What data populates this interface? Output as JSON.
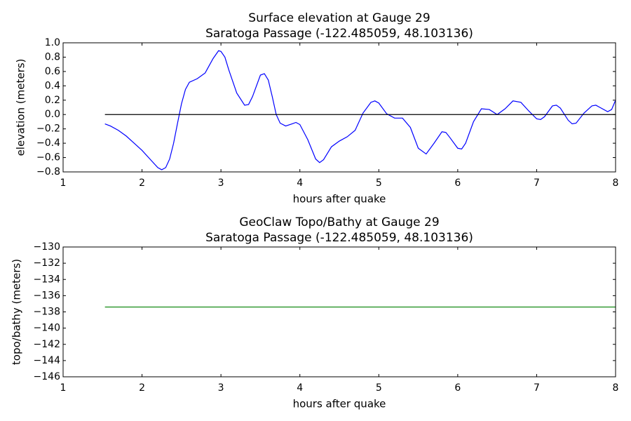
{
  "chart_data": [
    {
      "type": "line",
      "title": [
        "Surface elevation at Gauge 29",
        "Saratoga Passage  (-122.485059, 48.103136)"
      ],
      "xlabel": "hours after quake",
      "ylabel": "elevation (meters)",
      "xlim": [
        1,
        8
      ],
      "xticks": [
        1,
        2,
        3,
        4,
        5,
        6,
        7,
        8
      ],
      "ylim": [
        -0.8,
        1.0
      ],
      "yticks": [
        {
          "value": -0.8,
          "label": "−0.8"
        },
        {
          "value": -0.6,
          "label": "−0.6"
        },
        {
          "value": -0.4,
          "label": "−0.4"
        },
        {
          "value": -0.2,
          "label": "−0.2"
        },
        {
          "value": 0,
          "label": "0.0"
        },
        0.2,
        0.4,
        0.6,
        0.8,
        {
          "value": 1,
          "label": "1.0"
        }
      ],
      "grid": false,
      "series": [
        {
          "color": "#0000ff",
          "x": [
            1.53,
            1.6,
            1.7,
            1.8,
            1.9,
            2.0,
            2.1,
            2.2,
            2.25,
            2.3,
            2.35,
            2.4,
            2.45,
            2.5,
            2.55,
            2.6,
            2.7,
            2.8,
            2.9,
            2.97,
            3.0,
            3.05,
            3.1,
            3.2,
            3.3,
            3.35,
            3.4,
            3.5,
            3.55,
            3.6,
            3.65,
            3.7,
            3.75,
            3.82,
            3.9,
            3.95,
            4.0,
            4.1,
            4.2,
            4.25,
            4.3,
            4.4,
            4.5,
            4.6,
            4.7,
            4.8,
            4.9,
            4.95,
            5.0,
            5.1,
            5.2,
            5.3,
            5.4,
            5.5,
            5.6,
            5.7,
            5.8,
            5.85,
            5.9,
            6.0,
            6.05,
            6.1,
            6.2,
            6.3,
            6.4,
            6.5,
            6.6,
            6.7,
            6.8,
            6.9,
            7.0,
            7.05,
            7.1,
            7.2,
            7.25,
            7.3,
            7.4,
            7.45,
            7.5,
            7.6,
            7.7,
            7.75,
            7.8,
            7.9,
            7.95,
            8.0
          ],
          "values": [
            -0.13,
            -0.16,
            -0.22,
            -0.3,
            -0.4,
            -0.5,
            -0.62,
            -0.74,
            -0.77,
            -0.74,
            -0.62,
            -0.4,
            -0.12,
            0.15,
            0.35,
            0.45,
            0.5,
            0.58,
            0.78,
            0.89,
            0.88,
            0.8,
            0.62,
            0.3,
            0.13,
            0.14,
            0.25,
            0.55,
            0.57,
            0.48,
            0.25,
            0.0,
            -0.12,
            -0.16,
            -0.13,
            -0.11,
            -0.14,
            -0.35,
            -0.62,
            -0.67,
            -0.63,
            -0.45,
            -0.37,
            -0.31,
            -0.22,
            0.02,
            0.17,
            0.19,
            0.16,
            0.01,
            -0.05,
            -0.05,
            -0.18,
            -0.47,
            -0.55,
            -0.4,
            -0.24,
            -0.25,
            -0.32,
            -0.47,
            -0.48,
            -0.4,
            -0.1,
            0.08,
            0.07,
            0.0,
            0.08,
            0.19,
            0.17,
            0.05,
            -0.06,
            -0.07,
            -0.03,
            0.12,
            0.13,
            0.09,
            -0.08,
            -0.13,
            -0.12,
            0.02,
            0.12,
            0.13,
            0.1,
            0.04,
            0.07,
            0.2
          ]
        },
        {
          "color": "#000000",
          "x": [
            1.53,
            8
          ],
          "values": [
            0,
            0
          ]
        }
      ]
    },
    {
      "type": "line",
      "title": [
        "GeoClaw Topo/Bathy at Gauge 29",
        "Saratoga Passage  (-122.485059, 48.103136)"
      ],
      "xlabel": "hours after quake",
      "ylabel": "topo/bathy (meters)",
      "xlim": [
        1,
        8
      ],
      "xticks": [
        1,
        2,
        3,
        4,
        5,
        6,
        7,
        8
      ],
      "ylim": [
        -146,
        -130
      ],
      "yticks": [
        {
          "value": -146,
          "label": "−146"
        },
        {
          "value": -144,
          "label": "−144"
        },
        {
          "value": -142,
          "label": "−142"
        },
        {
          "value": -140,
          "label": "−140"
        },
        {
          "value": -138,
          "label": "−138"
        },
        {
          "value": -136,
          "label": "−136"
        },
        {
          "value": -134,
          "label": "−134"
        },
        {
          "value": -132,
          "label": "−132"
        },
        {
          "value": -130,
          "label": "−130"
        }
      ],
      "grid": false,
      "series": [
        {
          "color": "#008000",
          "x": [
            1.53,
            8
          ],
          "values": [
            -137.4,
            -137.4
          ]
        }
      ]
    }
  ]
}
